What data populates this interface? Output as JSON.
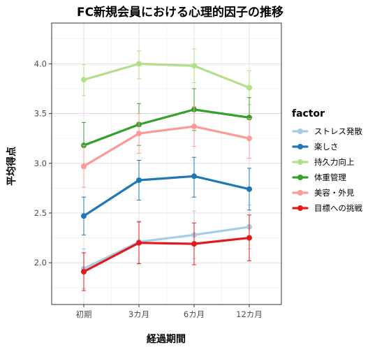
{
  "chart_data": {
    "type": "line",
    "title": "FC新規会員における心理的因子の推移",
    "xlabel": "経過期間",
    "ylabel": "平均得点",
    "categories": [
      "初期",
      "3カ月",
      "6カ月",
      "12カ月"
    ],
    "ylim": [
      1.58,
      4.41
    ],
    "yticks": [
      2.0,
      2.5,
      3.0,
      3.5,
      4.0
    ],
    "ytick_labels": [
      "2.0",
      "2.5",
      "3.0",
      "3.5",
      "4.0"
    ],
    "grid": true,
    "legend_title": "factor",
    "legend_position": "right",
    "series": [
      {
        "name": "ストレス発散",
        "color": "#a6cee3",
        "values": [
          1.94,
          2.21,
          2.28,
          2.36
        ],
        "lower": [
          1.74,
          2.0,
          2.04,
          2.14
        ],
        "upper": [
          2.14,
          2.42,
          2.52,
          2.58
        ]
      },
      {
        "name": "楽しさ",
        "color": "#1f78b4",
        "values": [
          2.47,
          2.83,
          2.87,
          2.74
        ],
        "lower": [
          2.28,
          2.63,
          2.66,
          2.53
        ],
        "upper": [
          2.66,
          3.03,
          3.06,
          2.95
        ]
      },
      {
        "name": "持久力向上",
        "color": "#b2df8a",
        "values": [
          3.84,
          4.0,
          3.98,
          3.76
        ],
        "lower": [
          3.68,
          3.85,
          3.81,
          3.59
        ],
        "upper": [
          3.99,
          4.13,
          4.15,
          3.93
        ]
      },
      {
        "name": "体重管理",
        "color": "#33a02c",
        "values": [
          3.18,
          3.39,
          3.54,
          3.46
        ],
        "lower": [
          2.95,
          3.18,
          3.33,
          3.26
        ],
        "upper": [
          3.41,
          3.6,
          3.75,
          3.66
        ]
      },
      {
        "name": "美容・外見",
        "color": "#fb9a99",
        "values": [
          2.97,
          3.3,
          3.37,
          3.25
        ],
        "lower": [
          2.76,
          3.1,
          3.17,
          3.05
        ],
        "upper": [
          3.18,
          3.5,
          3.57,
          3.45
        ]
      },
      {
        "name": "目標への挑戦",
        "color": "#e31a1c",
        "values": [
          1.91,
          2.2,
          2.19,
          2.25
        ],
        "lower": [
          1.72,
          1.99,
          1.98,
          2.02
        ],
        "upper": [
          2.1,
          2.41,
          2.4,
          2.48
        ]
      }
    ]
  }
}
